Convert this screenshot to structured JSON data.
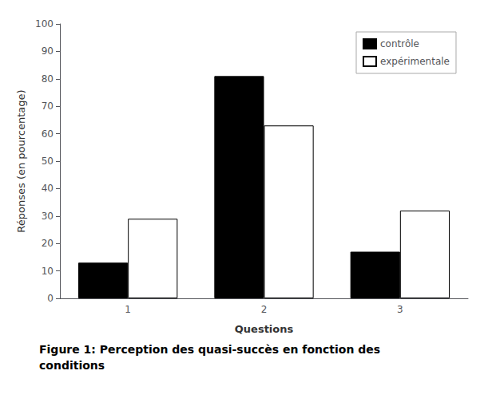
{
  "chart_data": {
    "type": "bar",
    "categories": [
      "1",
      "2",
      "3"
    ],
    "series": [
      {
        "name": "contrôle",
        "color": "#000000",
        "values": [
          13,
          81,
          17
        ]
      },
      {
        "name": "expérimentale",
        "color": "#ffffff",
        "values": [
          29,
          63,
          32
        ]
      }
    ],
    "xlabel": "Questions",
    "ylabel": "Réponses (en pourcentage)",
    "ylim": [
      0,
      100
    ],
    "yticks": [
      0,
      10,
      20,
      30,
      40,
      50,
      60,
      70,
      80,
      90,
      100
    ],
    "grid": false,
    "legend": "upper right",
    "annotations": [
      {
        "text": "Figure 1: Perception des quasi-succès en fonction des\nconditions"
      }
    ]
  }
}
